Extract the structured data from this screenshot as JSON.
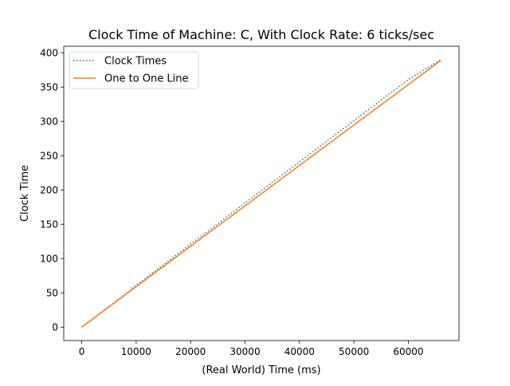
{
  "chart_data": {
    "type": "line",
    "title": "Clock Time of Machine: C, With Clock Rate: 6 ticks/sec",
    "xlabel": "(Real World) Time (ms)",
    "ylabel": "Clock Time",
    "xlim": [
      -3300,
      69300
    ],
    "ylim": [
      -19.5,
      409.5
    ],
    "xticks": [
      0,
      10000,
      20000,
      30000,
      40000,
      50000,
      60000
    ],
    "xtick_labels": [
      "0",
      "10000",
      "20000",
      "30000",
      "40000",
      "50000",
      "60000"
    ],
    "yticks": [
      0,
      50,
      100,
      150,
      200,
      250,
      300,
      350,
      400
    ],
    "ytick_labels": [
      "0",
      "50",
      "100",
      "150",
      "200",
      "250",
      "300",
      "350",
      "400"
    ],
    "grid": false,
    "legend_position": "upper left",
    "series": [
      {
        "name": "Clock Times",
        "color": "#1f77b4",
        "linestyle": "dotted",
        "x": [
          0,
          9000,
          9000,
          10000,
          20000,
          30000,
          40000,
          50000,
          60000,
          66000
        ],
        "y": [
          0,
          54,
          56,
          61,
          121,
          181,
          241,
          301,
          361,
          390
        ]
      },
      {
        "name": "One to One Line",
        "color": "#ff7f0e",
        "linestyle": "solid",
        "x": [
          0,
          66000
        ],
        "y": [
          0,
          389
        ]
      }
    ]
  }
}
